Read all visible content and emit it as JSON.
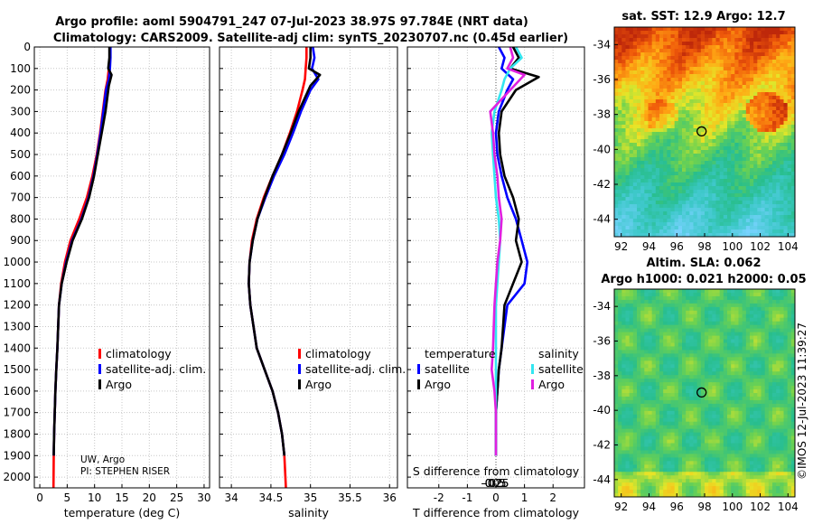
{
  "title_line1": "Argo profile: aoml 5904791_247 07-Jul-2023 38.97S 97.784E (NRT data)",
  "title_line2": "Climatology: CARS2009. Satellite-adj clim: synTS_20230707.nc (0.45d earlier)",
  "credit_line1": "UW, Argo",
  "credit_line2": "PI: STEPHEN RISER",
  "copyright": "©IMOS 12-Jul-2023 11:39:27",
  "sst_title": "sat. SST: 12.9 Argo: 12.7",
  "sla_title_line1": "Altim. SLA: 0.062",
  "sla_title_line2": "Argo h1000: 0.021 h2000: 0.05",
  "colors": {
    "climatology": "#ff0000",
    "satellite": "#0000ff",
    "argo": "#000000",
    "sal_satellite": "#33e6f0",
    "sal_argo": "#e020e0"
  },
  "legend1": {
    "climatology": "climatology",
    "satellite": "satellite-adj. clim.",
    "argo": "Argo"
  },
  "legend3": {
    "temp_head": "temperature",
    "sal_head": "salinity",
    "t_sat": "satellite",
    "t_argo": "Argo",
    "s_sat": "satellite",
    "s_argo": "Argo"
  },
  "chart_data": [
    {
      "type": "line",
      "id": "temperature",
      "xlabel": "temperature (deg C)",
      "ylabel": "",
      "xlim": [
        -1,
        31
      ],
      "ylim": [
        2050,
        0
      ],
      "xticks": [
        0,
        5,
        10,
        15,
        20,
        25,
        30
      ],
      "yticks": [
        0,
        100,
        200,
        300,
        400,
        500,
        600,
        700,
        800,
        900,
        1000,
        1100,
        1200,
        1300,
        1400,
        1500,
        1600,
        1700,
        1800,
        1900,
        2000
      ],
      "series": [
        {
          "name": "climatology",
          "color_key": "climatology",
          "x": [
            12.8,
            12.8,
            12.6,
            12.4,
            12.0,
            11.5,
            11.0,
            10.4,
            9.6,
            8.6,
            7.2,
            5.6,
            4.6,
            3.9,
            3.5,
            3.2,
            3.0,
            2.85,
            2.72,
            2.62,
            2.55,
            2.5
          ],
          "y": [
            0,
            50,
            100,
            150,
            200,
            300,
            400,
            500,
            600,
            700,
            800,
            900,
            1000,
            1100,
            1200,
            1400,
            1500,
            1600,
            1700,
            1800,
            1900,
            2050
          ]
        },
        {
          "name": "satellite-adj. clim.",
          "color_key": "satellite",
          "x": [
            12.9,
            12.9,
            12.8,
            12.6,
            12.1,
            11.6,
            11.1,
            10.5,
            9.8,
            8.9,
            7.6,
            5.9,
            4.8,
            4.0,
            3.5,
            3.2,
            3.0,
            2.85,
            2.72,
            2.62,
            2.55
          ],
          "y": [
            0,
            50,
            100,
            150,
            200,
            300,
            400,
            500,
            600,
            700,
            800,
            900,
            1000,
            1100,
            1200,
            1400,
            1500,
            1600,
            1700,
            1800,
            1900
          ]
        },
        {
          "name": "Argo",
          "color_key": "argo",
          "x": [
            12.7,
            12.7,
            12.5,
            13.1,
            12.6,
            12.0,
            11.3,
            10.6,
            9.9,
            9.0,
            7.7,
            6.0,
            4.9,
            4.0,
            3.5,
            3.2,
            3.0,
            2.85,
            2.72,
            2.62,
            2.55
          ],
          "y": [
            0,
            50,
            100,
            130,
            180,
            300,
            400,
            500,
            600,
            700,
            800,
            900,
            1000,
            1100,
            1200,
            1400,
            1500,
            1600,
            1700,
            1800,
            1900
          ]
        }
      ]
    },
    {
      "type": "line",
      "id": "salinity",
      "xlabel": "salinity",
      "xlim": [
        33.85,
        36.1
      ],
      "ylim": [
        2050,
        0
      ],
      "xticks": [
        34,
        34.5,
        35,
        35.5,
        36
      ],
      "series": [
        {
          "name": "climatology",
          "color_key": "climatology",
          "x": [
            34.95,
            34.95,
            34.94,
            34.93,
            34.9,
            34.83,
            34.74,
            34.64,
            34.52,
            34.41,
            34.32,
            34.26,
            34.23,
            34.22,
            34.24,
            34.32,
            34.42,
            34.52,
            34.59,
            34.64,
            34.67,
            34.69
          ],
          "y": [
            0,
            50,
            100,
            150,
            200,
            300,
            400,
            500,
            600,
            700,
            800,
            900,
            1000,
            1100,
            1200,
            1400,
            1500,
            1600,
            1700,
            1800,
            1900,
            2050
          ]
        },
        {
          "name": "satellite-adj. clim.",
          "color_key": "satellite",
          "x": [
            35.03,
            35.05,
            35.02,
            35.1,
            35.0,
            34.88,
            34.78,
            34.67,
            34.54,
            34.43,
            34.33,
            34.27,
            34.23,
            34.22,
            34.24,
            34.32,
            34.42,
            34.52,
            34.59,
            34.64,
            34.67
          ],
          "y": [
            0,
            50,
            100,
            150,
            200,
            300,
            400,
            500,
            600,
            700,
            800,
            900,
            1000,
            1100,
            1200,
            1400,
            1500,
            1600,
            1700,
            1800,
            1900
          ]
        },
        {
          "name": "Argo",
          "color_key": "argo",
          "x": [
            35.0,
            35.0,
            34.98,
            35.12,
            35.0,
            34.85,
            34.75,
            34.64,
            34.52,
            34.42,
            34.33,
            34.27,
            34.23,
            34.22,
            34.24,
            34.32,
            34.42,
            34.52,
            34.59,
            34.64,
            34.67
          ],
          "y": [
            0,
            50,
            100,
            130,
            180,
            300,
            400,
            500,
            600,
            700,
            800,
            900,
            1000,
            1100,
            1200,
            1400,
            1500,
            1600,
            1700,
            1800,
            1900
          ]
        }
      ]
    },
    {
      "type": "line",
      "id": "difference",
      "xlabel": "T difference from climatology",
      "xlabel2": "S difference from climatology",
      "xlim": [
        -3.1,
        3.1
      ],
      "ylim": [
        2050,
        0
      ],
      "xticks": [
        -2,
        -1,
        0,
        1,
        2
      ],
      "xticklabels": [
        "-2",
        "-1",
        "0",
        "1",
        "2"
      ],
      "sticks_values": [
        -0.5,
        -0.25,
        0,
        0.25,
        0.5
      ],
      "sticks": [
        "-0.5",
        "-0.25",
        "0",
        "0.25",
        "0.5"
      ],
      "series": [
        {
          "name": "temperature satellite",
          "color_key": "satellite",
          "x": [
            0.1,
            0.3,
            0.2,
            0.6,
            0.4,
            0.1,
            0.0,
            0.05,
            0.2,
            0.4,
            0.7,
            0.9,
            1.1,
            1.0,
            0.4,
            0.2,
            0.1,
            0.05,
            0.0,
            0.0,
            0.0
          ],
          "y": [
            0,
            50,
            100,
            150,
            200,
            300,
            400,
            500,
            600,
            700,
            800,
            900,
            1000,
            1100,
            1200,
            1400,
            1500,
            1600,
            1700,
            1800,
            1900
          ]
        },
        {
          "name": "temperature Argo",
          "color_key": "argo",
          "x": [
            0.6,
            0.8,
            0.5,
            1.5,
            0.7,
            0.2,
            0.1,
            0.15,
            0.3,
            0.6,
            0.8,
            0.7,
            0.9,
            0.6,
            0.3,
            0.2,
            0.1,
            0.05,
            0.0,
            0.0,
            0.0
          ],
          "y": [
            0,
            50,
            100,
            140,
            200,
            300,
            400,
            500,
            600,
            700,
            800,
            900,
            1000,
            1100,
            1200,
            1400,
            1500,
            1600,
            1700,
            1800,
            1900
          ]
        },
        {
          "name": "salinity satellite",
          "color_key": "sal_satellite",
          "x": [
            0.7,
            0.9,
            0.5,
            0.3,
            0.2,
            -0.05,
            -0.15,
            -0.1,
            -0.05,
            0.0,
            0.1,
            0.15,
            0.1,
            0.05,
            0.0,
            0.0,
            0.0,
            0.0,
            0.0,
            0.0,
            0.0
          ],
          "y": [
            0,
            50,
            100,
            150,
            200,
            300,
            400,
            500,
            600,
            700,
            800,
            900,
            1000,
            1100,
            1200,
            1400,
            1500,
            1600,
            1700,
            1800,
            1900
          ]
        },
        {
          "name": "salinity Argo",
          "color_key": "sal_argo",
          "x": [
            0.5,
            0.6,
            0.4,
            1.0,
            0.5,
            -0.2,
            -0.1,
            -0.05,
            0.05,
            0.1,
            0.2,
            0.15,
            0.05,
            0.0,
            -0.05,
            -0.1,
            -0.15,
            -0.05,
            0.0,
            0.0,
            0.0
          ],
          "y": [
            0,
            50,
            100,
            130,
            200,
            300,
            400,
            500,
            600,
            700,
            800,
            900,
            1000,
            1100,
            1200,
            1400,
            1500,
            1600,
            1700,
            1800,
            1900
          ]
        }
      ]
    },
    {
      "type": "heatmap",
      "id": "sst_map",
      "title": "sat. SST: 12.9 Argo: 12.7",
      "xlim": [
        91.5,
        104.5
      ],
      "ylim": [
        -45,
        -33
      ],
      "xticks": [
        92,
        94,
        96,
        98,
        100,
        102,
        104
      ],
      "yticks": [
        -34,
        -36,
        -38,
        -40,
        -42,
        -44
      ],
      "argo_lon": 97.784,
      "argo_lat": -38.97
    },
    {
      "type": "heatmap",
      "id": "sla_map",
      "title": "Altim. SLA: 0.062",
      "xlim": [
        91.5,
        104.5
      ],
      "ylim": [
        -45,
        -33
      ],
      "xticks": [
        92,
        94,
        96,
        98,
        100,
        102,
        104
      ],
      "yticks": [
        -34,
        -36,
        -38,
        -40,
        -42,
        -44
      ],
      "argo_lon": 97.784,
      "argo_lat": -38.97
    }
  ]
}
